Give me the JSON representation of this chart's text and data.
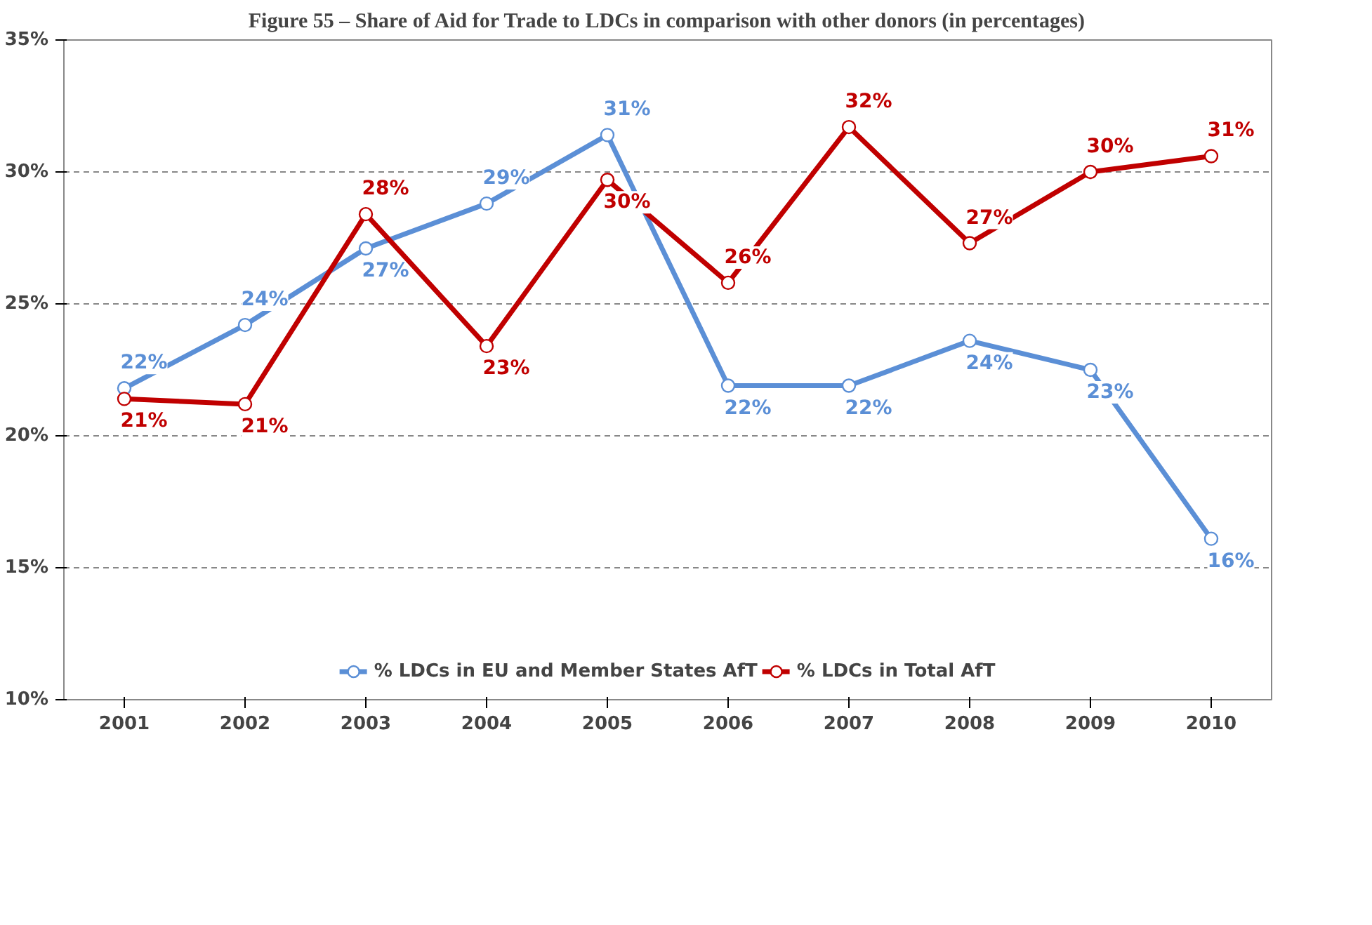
{
  "chart_data": {
    "type": "line",
    "title": "Figure 55 – Share of Aid for Trade to LDCs in comparison with other donors (in percentages)",
    "categories": [
      "2001",
      "2002",
      "2003",
      "2004",
      "2005",
      "2006",
      "2007",
      "2008",
      "2009",
      "2010"
    ],
    "series": [
      {
        "name": "% LDCs in EU and Member States AfT",
        "color": "#5b8fd6",
        "values": [
          21.8,
          24.2,
          27.1,
          28.8,
          31.4,
          21.9,
          21.9,
          23.6,
          22.5,
          16.1
        ],
        "value_labels": [
          "22%",
          "24%",
          "27%",
          "29%",
          "31%",
          "22%",
          "22%",
          "24%",
          "23%",
          "16%"
        ]
      },
      {
        "name": "% LDCs in Total AfT",
        "color": "#c00000",
        "values": [
          21.4,
          21.2,
          28.4,
          23.4,
          29.7,
          25.8,
          31.7,
          27.3,
          30.0,
          30.6
        ],
        "value_labels": [
          "21%",
          "21%",
          "28%",
          "23%",
          "30%",
          "26%",
          "32%",
          "27%",
          "30%",
          "31%"
        ]
      }
    ],
    "ylim": [
      10,
      35
    ],
    "yticks": [
      {
        "value": 10,
        "label": "10%"
      },
      {
        "value": 15,
        "label": "15%"
      },
      {
        "value": 20,
        "label": "20%"
      },
      {
        "value": 25,
        "label": "25%"
      },
      {
        "value": 30,
        "label": "30%"
      },
      {
        "value": 35,
        "label": "35%"
      }
    ],
    "grid": "y",
    "legend": "bottom",
    "marker": "circle",
    "line_style": "solid"
  }
}
